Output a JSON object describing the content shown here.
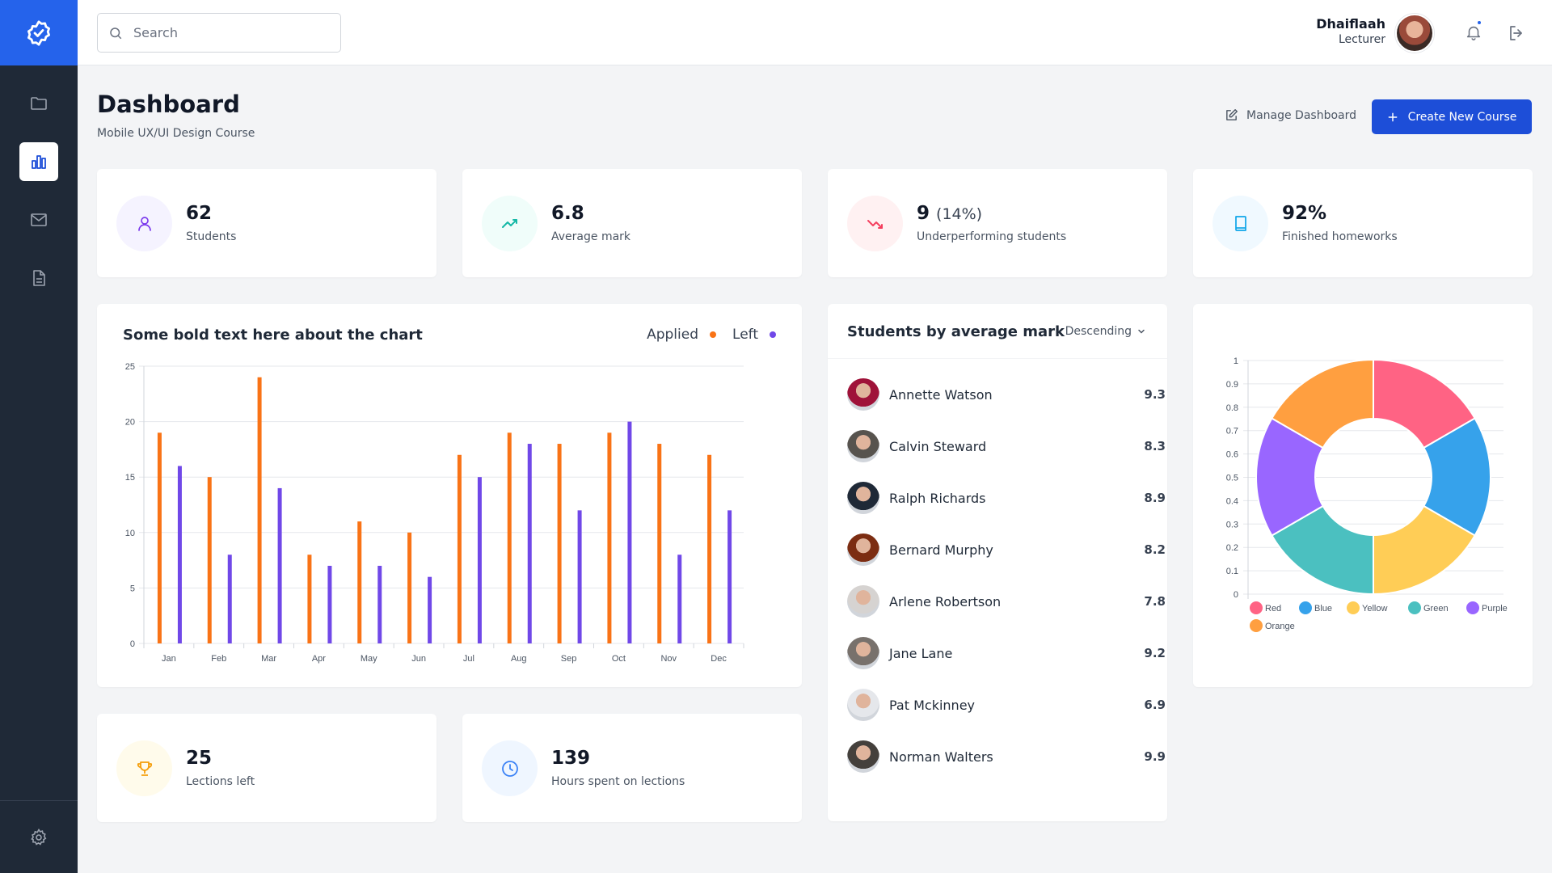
{
  "app": {
    "accent": "#2563eb",
    "sidebar_bg": "#1f2937"
  },
  "sidebar": {
    "items": [
      {
        "name": "folder-icon"
      },
      {
        "name": "chart-icon",
        "active": true
      },
      {
        "name": "mail-icon"
      },
      {
        "name": "document-icon"
      }
    ],
    "footer": {
      "name": "gear-icon"
    }
  },
  "topbar": {
    "search_placeholder": "Search",
    "user_name": "Dhaiflaah",
    "user_role": "Lecturer",
    "notification_dot": true
  },
  "header": {
    "title": "Dashboard",
    "subtitle": "Mobile UX/UI Design Course",
    "manage_label": "Manage Dashboard",
    "create_label": "Create New Course"
  },
  "stats": [
    {
      "value": "62",
      "suffix": "",
      "label": "Students",
      "icon": "user-icon",
      "color": "#7c3aed",
      "bg": "#f5f3ff"
    },
    {
      "value": "6.8",
      "suffix": "",
      "label": "Average mark",
      "icon": "trend-up-icon",
      "color": "#14b8a6",
      "bg": "#f0fdfa"
    },
    {
      "value": "9",
      "suffix": "(14%)",
      "label": "Underperforming students",
      "icon": "trend-down-icon",
      "color": "#f43f5e",
      "bg": "#fff1f2"
    },
    {
      "value": "92%",
      "suffix": "",
      "label": "Finished homeworks",
      "icon": "book-icon",
      "color": "#0ea5e9",
      "bg": "#f0f9ff"
    },
    {
      "value": "25",
      "suffix": "",
      "label": "Lections left",
      "icon": "trophy-icon",
      "color": "#f59e0b",
      "bg": "#fffbeb"
    },
    {
      "value": "139",
      "suffix": "",
      "label": "Hours spent on lections",
      "icon": "clock-icon",
      "color": "#3b82f6",
      "bg": "#eff6ff"
    }
  ],
  "students": {
    "title": "Students by average mark",
    "sort_label": "Descending",
    "items": [
      {
        "name": "Annette Watson",
        "mark": "9.3",
        "avatar": "#9f1239"
      },
      {
        "name": "Calvin Steward",
        "mark": "8.3",
        "avatar": "#57534e"
      },
      {
        "name": "Ralph Richards",
        "mark": "8.9",
        "avatar": "#1f2937"
      },
      {
        "name": "Bernard Murphy",
        "mark": "8.2",
        "avatar": "#7c2d12"
      },
      {
        "name": "Arlene Robertson",
        "mark": "7.8",
        "avatar": "#d6d3d1"
      },
      {
        "name": "Jane Lane",
        "mark": "9.2",
        "avatar": "#78716c"
      },
      {
        "name": "Pat Mckinney",
        "mark": "6.9",
        "avatar": "#e5e7eb"
      },
      {
        "name": "Norman Walters",
        "mark": "9.9",
        "avatar": "#44403c"
      }
    ]
  },
  "chart_data": [
    {
      "type": "bar",
      "title": "Some bold text here about the chart",
      "categories": [
        "Jan",
        "Feb",
        "Mar",
        "Apr",
        "May",
        "Jun",
        "Jul",
        "Aug",
        "Sep",
        "Oct",
        "Nov",
        "Dec"
      ],
      "series": [
        {
          "name": "Applied",
          "color": "#f97316",
          "values": [
            19,
            15,
            24,
            8,
            11,
            10,
            17,
            19,
            18,
            19,
            18,
            17
          ]
        },
        {
          "name": "Left",
          "color": "#7048e8",
          "values": [
            16,
            8,
            14,
            7,
            7,
            6,
            15,
            18,
            12,
            20,
            8,
            12
          ]
        }
      ],
      "ylim": [
        0,
        25
      ],
      "yticks": [
        0,
        5,
        10,
        15,
        20,
        25
      ],
      "grid": true,
      "legend": "top-right"
    },
    {
      "type": "pie",
      "variant": "doughnut",
      "categories": [
        "Red",
        "Blue",
        "Yellow",
        "Green",
        "Purple",
        "Orange"
      ],
      "values": [
        1,
        1,
        1,
        1,
        1,
        1
      ],
      "colors": [
        "#ff6384",
        "#36a2eb",
        "#ffcd56",
        "#4bc0c0",
        "#9966ff",
        "#ff9f40"
      ],
      "yticks": [
        "0",
        "0.1",
        "0.2",
        "0.3",
        "0.4",
        "0.5",
        "0.6",
        "0.7",
        "0.8",
        "0.9",
        "1"
      ],
      "legend": "bottom"
    }
  ]
}
